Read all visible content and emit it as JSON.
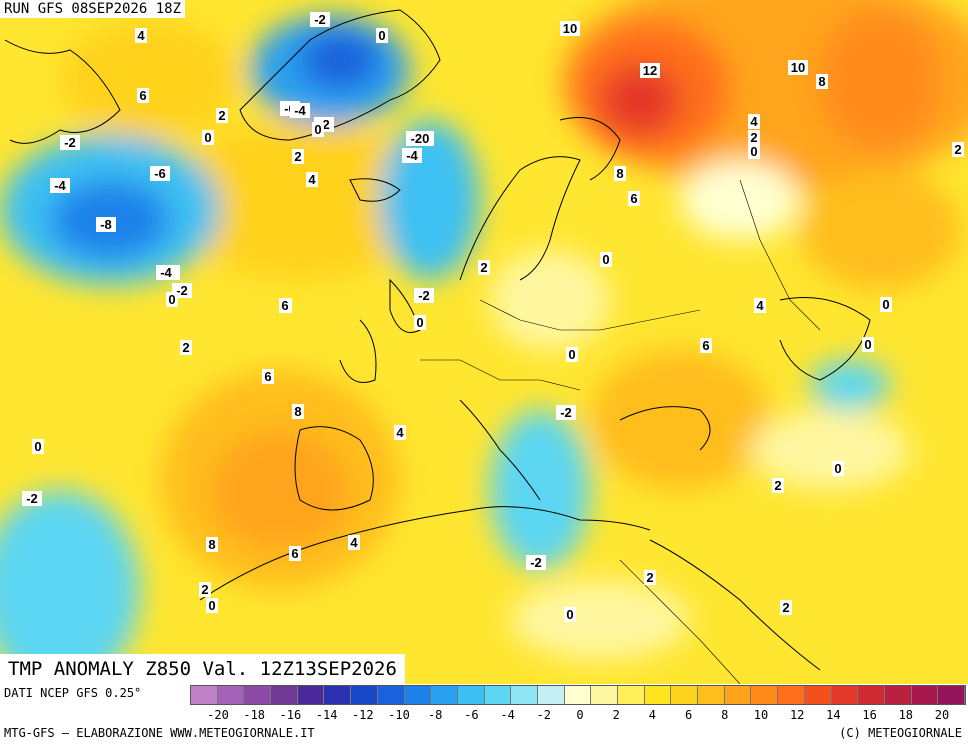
{
  "run_label": "RUN GFS 08SEP2026 18Z",
  "title": "TMP ANOMALY Z850 Val. 12Z13SEP2026",
  "source_text": "DATI NCEP GFS 0.25°",
  "credit_text": "MTG-GFS — ELABORAZIONE WWW.METEOGIORNALE.IT",
  "copyright_text": "(C) METEOGIORNALE",
  "colorbar": {
    "colors": [
      "#c081c8",
      "#a463b8",
      "#8a4aa6",
      "#713896",
      "#4a2a9a",
      "#2a32b0",
      "#1848c8",
      "#1a62dc",
      "#1e82ea",
      "#2aa0f0",
      "#3cc0f2",
      "#5cd6f2",
      "#8ee4f4",
      "#c4f0f6",
      "#ffffd2",
      "#fff7a0",
      "#fff05a",
      "#ffe41e",
      "#ffd21e",
      "#ffbe1c",
      "#ffa41a",
      "#ff8a1a",
      "#ff6e1c",
      "#f4501e",
      "#e43828",
      "#d02a34",
      "#bc2040",
      "#a8164e",
      "#96145a"
    ],
    "tick_labels": [
      "-20",
      "-18",
      "-16",
      "-14",
      "-12",
      "-10",
      "-8",
      "-6",
      "-4",
      "-2",
      "0",
      "2",
      "4",
      "6",
      "8",
      "10",
      "12",
      "14",
      "16",
      "18",
      "20"
    ]
  },
  "contour_labels": [
    "4",
    "6",
    "-2",
    "-2",
    "-4",
    "-8",
    "-6",
    "-4",
    "-2",
    "0",
    "2",
    "0",
    "2",
    "4",
    "6",
    "2",
    "6",
    "8",
    "8",
    "6",
    "4",
    "2",
    "0",
    "-2",
    "0",
    "4",
    "-20",
    "-4",
    "0",
    "-6",
    "-4",
    "-2",
    "-4",
    "0",
    "-2",
    "10",
    "12",
    "10",
    "8",
    "8",
    "6",
    "4",
    "2",
    "0",
    "2",
    "6",
    "0",
    "0",
    "4",
    "6",
    "-2",
    "0",
    "0",
    "0",
    "2",
    "2",
    "2",
    "-2",
    "0",
    "2",
    "0"
  ]
}
